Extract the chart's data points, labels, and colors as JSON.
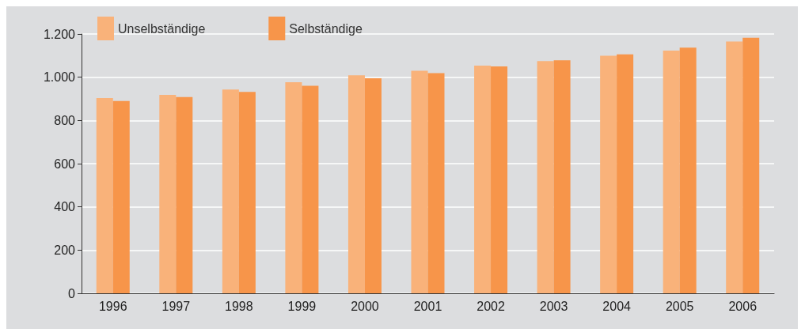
{
  "chart_data": {
    "type": "bar",
    "categories": [
      "1996",
      "1997",
      "1998",
      "1999",
      "2000",
      "2001",
      "2002",
      "2003",
      "2004",
      "2005",
      "2006"
    ],
    "series": [
      {
        "name": "Unselbständige",
        "color": "#f9b27a",
        "values": [
          904,
          918,
          943,
          977,
          1009,
          1030,
          1054,
          1075,
          1099,
          1123,
          1165
        ]
      },
      {
        "name": "Selbständige",
        "color": "#f7954a",
        "values": [
          890,
          908,
          932,
          960,
          995,
          1019,
          1050,
          1078,
          1106,
          1137,
          1183
        ]
      }
    ],
    "ylim": [
      0,
      1200
    ],
    "yticks": [
      0,
      200,
      400,
      600,
      800,
      {
        "value": 1000,
        "label": "1.000"
      },
      {
        "value": 1200,
        "label": "1.200"
      }
    ],
    "grid": "y",
    "legend": "top left"
  }
}
